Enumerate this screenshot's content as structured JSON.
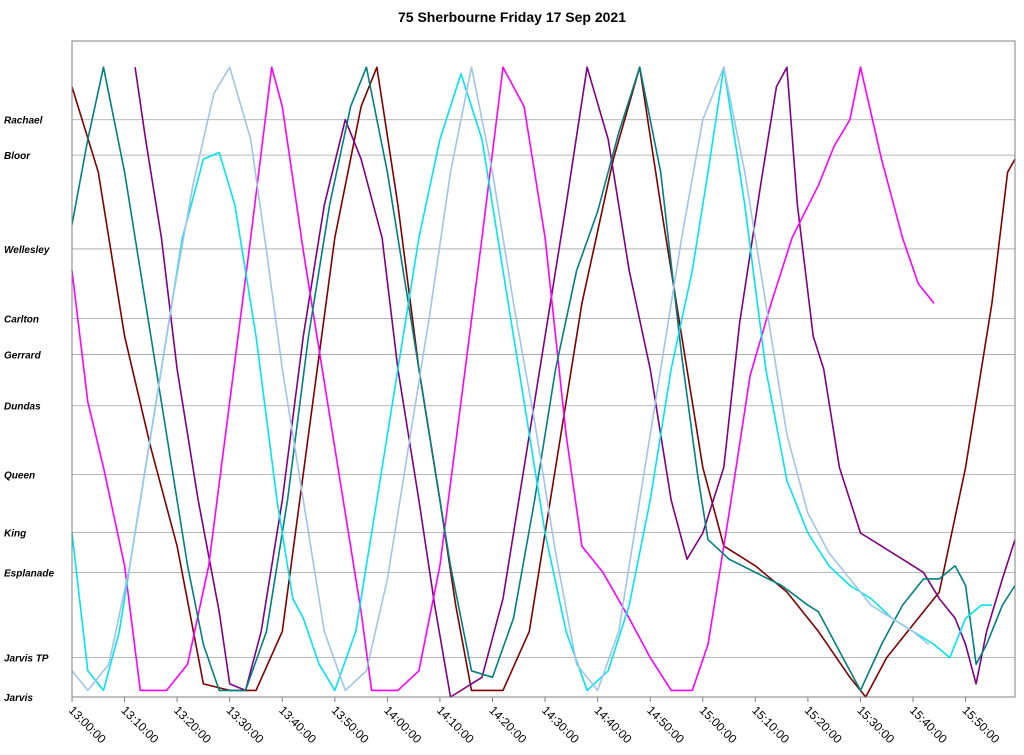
{
  "chart_data": {
    "type": "line",
    "title": "75 Sherbourne Friday 17 Sep 2021",
    "xlabel": "",
    "ylabel": "",
    "x_ticks": [
      "13:00:00",
      "13:10:00",
      "13:20:00",
      "13:30:00",
      "13:40:00",
      "13:50:00",
      "14:00:00",
      "14:10:00",
      "14:20:00",
      "14:30:00",
      "14:40:00",
      "14:50:00",
      "15:00:00",
      "15:10:00",
      "15:20:00",
      "15:30:00",
      "15:40:00",
      "15:50:00"
    ],
    "xlim_minutes": [
      0,
      179.4
    ],
    "stops": [
      {
        "name": "Rachael",
        "pos": 0.88
      },
      {
        "name": "Bloor",
        "pos": 0.826
      },
      {
        "name": "Wellesley",
        "pos": 0.683
      },
      {
        "name": "Carlton",
        "pos": 0.577
      },
      {
        "name": "Gerrard",
        "pos": 0.522
      },
      {
        "name": "Dundas",
        "pos": 0.444
      },
      {
        "name": "Queen",
        "pos": 0.339
      },
      {
        "name": "King",
        "pos": 0.251
      },
      {
        "name": "Esplanade",
        "pos": 0.19
      },
      {
        "name": "Jarvis TP",
        "pos": 0.06
      },
      {
        "name": "Jarvis",
        "pos": 0.0
      }
    ],
    "ylim": [
      0,
      1
    ],
    "grid": "horizontal lines at each stop",
    "legend": "none",
    "series": [
      {
        "color": "#800000",
        "points": [
          [
            0,
            0.93
          ],
          [
            5,
            0.8
          ],
          [
            10,
            0.55
          ],
          [
            15,
            0.38
          ],
          [
            20,
            0.23
          ],
          [
            25,
            0.02
          ],
          [
            30,
            0.01
          ],
          [
            35,
            0.01
          ],
          [
            40,
            0.1
          ],
          [
            45,
            0.4
          ],
          [
            50,
            0.7
          ],
          [
            55,
            0.9
          ],
          [
            58,
            0.96
          ],
          [
            62,
            0.75
          ],
          [
            66,
            0.5
          ],
          [
            70,
            0.3
          ],
          [
            73,
            0.14
          ],
          [
            76,
            0.01
          ],
          [
            82,
            0.01
          ],
          [
            87,
            0.1
          ],
          [
            92,
            0.35
          ],
          [
            97,
            0.6
          ],
          [
            103,
            0.82
          ],
          [
            108,
            0.96
          ],
          [
            112,
            0.75
          ],
          [
            116,
            0.55
          ],
          [
            120,
            0.35
          ],
          [
            124,
            0.23
          ],
          [
            130,
            0.2
          ],
          [
            136,
            0.16
          ],
          [
            142,
            0.1
          ],
          [
            148,
            0.03
          ],
          [
            151,
            0.0
          ],
          [
            155,
            0.06
          ],
          [
            160,
            0.11
          ],
          [
            165,
            0.16
          ],
          [
            170,
            0.35
          ],
          [
            175,
            0.6
          ],
          [
            178,
            0.8
          ],
          [
            179.4,
            0.82
          ]
        ]
      },
      {
        "color": "#800080",
        "points": [
          [
            12,
            0.96
          ],
          [
            14,
            0.85
          ],
          [
            17,
            0.7
          ],
          [
            20,
            0.5
          ],
          [
            24,
            0.3
          ],
          [
            28,
            0.13
          ],
          [
            30,
            0.02
          ],
          [
            33,
            0.01
          ],
          [
            36,
            0.1
          ],
          [
            40,
            0.3
          ],
          [
            44,
            0.55
          ],
          [
            48,
            0.75
          ],
          [
            52,
            0.88
          ],
          [
            55,
            0.82
          ],
          [
            59,
            0.7
          ],
          [
            62,
            0.5
          ],
          [
            66,
            0.3
          ],
          [
            69,
            0.14
          ],
          [
            72,
            0.0
          ],
          [
            78,
            0.03
          ],
          [
            82,
            0.15
          ],
          [
            86,
            0.35
          ],
          [
            90,
            0.55
          ],
          [
            94,
            0.75
          ],
          [
            98,
            0.96
          ],
          [
            102,
            0.85
          ],
          [
            106,
            0.65
          ],
          [
            110,
            0.5
          ],
          [
            114,
            0.3
          ],
          [
            117,
            0.21
          ],
          [
            120,
            0.25
          ],
          [
            124,
            0.35
          ],
          [
            127,
            0.57
          ],
          [
            131,
            0.78
          ],
          [
            134,
            0.93
          ],
          [
            136,
            0.96
          ],
          [
            138,
            0.75
          ],
          [
            141,
            0.55
          ],
          [
            143,
            0.5
          ],
          [
            146,
            0.35
          ],
          [
            150,
            0.25
          ],
          [
            154,
            0.23
          ],
          [
            158,
            0.21
          ],
          [
            162,
            0.19
          ],
          [
            165,
            0.15
          ],
          [
            168,
            0.12
          ],
          [
            170,
            0.08
          ],
          [
            172,
            0.02
          ],
          [
            174,
            0.1
          ],
          [
            177,
            0.18
          ],
          [
            179.4,
            0.24
          ]
        ]
      },
      {
        "color": "#FF00FF",
        "points": [
          [
            0,
            0.65
          ],
          [
            3,
            0.45
          ],
          [
            6,
            0.35
          ],
          [
            10,
            0.2
          ],
          [
            13,
            0.01
          ],
          [
            18,
            0.01
          ],
          [
            22,
            0.05
          ],
          [
            26,
            0.2
          ],
          [
            30,
            0.45
          ],
          [
            34,
            0.7
          ],
          [
            38,
            0.96
          ],
          [
            40,
            0.9
          ],
          [
            44,
            0.68
          ],
          [
            48,
            0.48
          ],
          [
            52,
            0.28
          ],
          [
            55,
            0.13
          ],
          [
            57,
            0.01
          ],
          [
            62,
            0.01
          ],
          [
            66,
            0.04
          ],
          [
            70,
            0.2
          ],
          [
            74,
            0.45
          ],
          [
            78,
            0.7
          ],
          [
            82,
            0.96
          ],
          [
            86,
            0.9
          ],
          [
            90,
            0.7
          ],
          [
            94,
            0.4
          ],
          [
            97,
            0.23
          ],
          [
            101,
            0.19
          ],
          [
            106,
            0.12
          ],
          [
            110,
            0.06
          ],
          [
            114,
            0.01
          ],
          [
            118,
            0.01
          ],
          [
            121,
            0.08
          ],
          [
            125,
            0.28
          ],
          [
            129,
            0.49
          ],
          [
            133,
            0.6
          ],
          [
            137,
            0.7
          ],
          [
            142,
            0.78
          ],
          [
            145,
            0.84
          ],
          [
            148,
            0.88
          ],
          [
            150,
            0.96
          ],
          [
            154,
            0.82
          ],
          [
            158,
            0.7
          ],
          [
            161,
            0.63
          ],
          [
            164,
            0.6
          ]
        ]
      },
      {
        "color": "#008080",
        "points": [
          [
            0,
            0.72
          ],
          [
            3,
            0.85
          ],
          [
            6,
            0.96
          ],
          [
            10,
            0.8
          ],
          [
            14,
            0.6
          ],
          [
            18,
            0.4
          ],
          [
            22,
            0.2
          ],
          [
            25,
            0.08
          ],
          [
            28,
            0.01
          ],
          [
            33,
            0.01
          ],
          [
            37,
            0.1
          ],
          [
            41,
            0.3
          ],
          [
            45,
            0.55
          ],
          [
            49,
            0.75
          ],
          [
            53,
            0.9
          ],
          [
            56,
            0.96
          ],
          [
            60,
            0.8
          ],
          [
            64,
            0.6
          ],
          [
            68,
            0.4
          ],
          [
            72,
            0.2
          ],
          [
            76,
            0.04
          ],
          [
            80,
            0.03
          ],
          [
            84,
            0.12
          ],
          [
            88,
            0.3
          ],
          [
            92,
            0.5
          ],
          [
            96,
            0.65
          ],
          [
            100,
            0.74
          ],
          [
            104,
            0.86
          ],
          [
            108,
            0.96
          ],
          [
            112,
            0.8
          ],
          [
            116,
            0.52
          ],
          [
            119,
            0.34
          ],
          [
            121,
            0.24
          ],
          [
            125,
            0.21
          ],
          [
            130,
            0.19
          ],
          [
            135,
            0.17
          ],
          [
            140,
            0.14
          ],
          [
            142,
            0.13
          ],
          [
            146,
            0.07
          ],
          [
            150,
            0.01
          ],
          [
            154,
            0.08
          ],
          [
            158,
            0.14
          ],
          [
            162,
            0.18
          ],
          [
            165,
            0.18
          ],
          [
            168,
            0.2
          ],
          [
            170,
            0.17
          ],
          [
            172,
            0.05
          ],
          [
            174,
            0.08
          ],
          [
            177,
            0.14
          ],
          [
            179.4,
            0.17
          ]
        ]
      },
      {
        "color": "#00E5EE",
        "points": [
          [
            0,
            0.25
          ],
          [
            3,
            0.04
          ],
          [
            6,
            0.01
          ],
          [
            9,
            0.1
          ],
          [
            13,
            0.3
          ],
          [
            17,
            0.5
          ],
          [
            21,
            0.7
          ],
          [
            25,
            0.82
          ],
          [
            28,
            0.83
          ],
          [
            31,
            0.75
          ],
          [
            35,
            0.55
          ],
          [
            39,
            0.3
          ],
          [
            42,
            0.15
          ],
          [
            44,
            0.12
          ],
          [
            47,
            0.05
          ],
          [
            50,
            0.01
          ],
          [
            54,
            0.1
          ],
          [
            58,
            0.3
          ],
          [
            62,
            0.5
          ],
          [
            66,
            0.7
          ],
          [
            70,
            0.85
          ],
          [
            74,
            0.95
          ],
          [
            78,
            0.85
          ],
          [
            82,
            0.65
          ],
          [
            86,
            0.45
          ],
          [
            90,
            0.25
          ],
          [
            94,
            0.1
          ],
          [
            98,
            0.01
          ],
          [
            102,
            0.04
          ],
          [
            106,
            0.14
          ],
          [
            110,
            0.3
          ],
          [
            114,
            0.5
          ],
          [
            118,
            0.65
          ],
          [
            121,
            0.8
          ],
          [
            124,
            0.96
          ],
          [
            128,
            0.75
          ],
          [
            132,
            0.5
          ],
          [
            136,
            0.33
          ],
          [
            140,
            0.25
          ],
          [
            144,
            0.2
          ],
          [
            148,
            0.17
          ],
          [
            152,
            0.15
          ],
          [
            156,
            0.12
          ],
          [
            160,
            0.1
          ],
          [
            164,
            0.08
          ],
          [
            167,
            0.06
          ],
          [
            170,
            0.12
          ],
          [
            173,
            0.14
          ],
          [
            175,
            0.14
          ]
        ]
      },
      {
        "color": "#9FC5E8",
        "points": [
          [
            0,
            0.04
          ],
          [
            3,
            0.01
          ],
          [
            7,
            0.05
          ],
          [
            11,
            0.2
          ],
          [
            15,
            0.4
          ],
          [
            19,
            0.6
          ],
          [
            23,
            0.78
          ],
          [
            27,
            0.92
          ],
          [
            30,
            0.96
          ],
          [
            34,
            0.85
          ],
          [
            37,
            0.68
          ],
          [
            40,
            0.5
          ],
          [
            44,
            0.3
          ],
          [
            48,
            0.1
          ],
          [
            52,
            0.01
          ],
          [
            56,
            0.04
          ],
          [
            60,
            0.18
          ],
          [
            64,
            0.38
          ],
          [
            68,
            0.58
          ],
          [
            72,
            0.8
          ],
          [
            76,
            0.96
          ],
          [
            80,
            0.8
          ],
          [
            84,
            0.6
          ],
          [
            88,
            0.42
          ],
          [
            92,
            0.22
          ],
          [
            96,
            0.05
          ],
          [
            100,
            0.01
          ],
          [
            104,
            0.1
          ],
          [
            108,
            0.3
          ],
          [
            112,
            0.5
          ],
          [
            116,
            0.7
          ],
          [
            120,
            0.88
          ],
          [
            124,
            0.96
          ],
          [
            128,
            0.8
          ],
          [
            132,
            0.6
          ],
          [
            136,
            0.4
          ],
          [
            140,
            0.28
          ],
          [
            144,
            0.22
          ],
          [
            148,
            0.18
          ],
          [
            152,
            0.14
          ],
          [
            156,
            0.12
          ],
          [
            160,
            0.1
          ],
          [
            163,
            0.08
          ]
        ]
      }
    ]
  }
}
